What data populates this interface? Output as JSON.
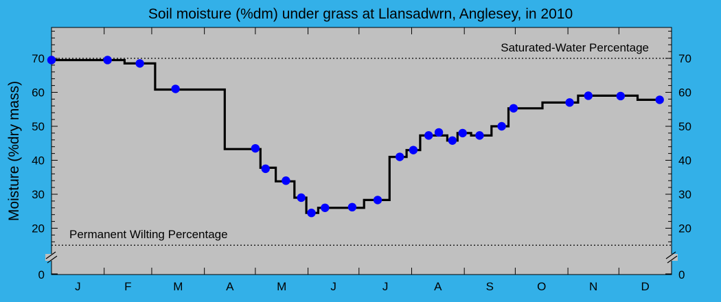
{
  "chart_data": {
    "type": "line",
    "title": "Soil moisture (%dm) under grass at Llansadwrn, Anglesey, in 2010",
    "ylabel": "Moisture (%dry mass)",
    "xlabel": "",
    "ylim": [
      0,
      80
    ],
    "xlim": [
      "2010-01-01",
      "2010-12-31"
    ],
    "yticks": [
      "0",
      "20",
      "30",
      "40",
      "50",
      "60",
      "70"
    ],
    "month_labels": [
      "J",
      "F",
      "M",
      "A",
      "M",
      "J",
      "J",
      "A",
      "S",
      "O",
      "N",
      "D"
    ],
    "grid": false,
    "axis_break": true,
    "reference_lines": [
      {
        "label": "Saturated-Water Percentage",
        "y": 70
      },
      {
        "label": "Permanent Wilting Percentage",
        "y": 15
      }
    ],
    "series": [
      {
        "color": "#0000ff",
        "points": [
          {
            "x": "2010-01-01",
            "y": 69.5
          },
          {
            "x": "2010-02-03",
            "y": 69.5
          },
          {
            "x": "2010-02-22",
            "y": 68.5
          },
          {
            "x": "2010-03-15",
            "y": 61
          },
          {
            "x": "2010-05-01",
            "y": 43.5
          },
          {
            "x": "2010-05-07",
            "y": 37.5
          },
          {
            "x": "2010-05-19",
            "y": 34
          },
          {
            "x": "2010-05-28",
            "y": 29
          },
          {
            "x": "2010-06-03",
            "y": 24.5
          },
          {
            "x": "2010-06-11",
            "y": 26
          },
          {
            "x": "2010-06-27",
            "y": 26.2
          },
          {
            "x": "2010-07-12",
            "y": 28.3
          },
          {
            "x": "2010-07-25",
            "y": 41
          },
          {
            "x": "2010-08-02",
            "y": 43
          },
          {
            "x": "2010-08-11",
            "y": 47.3
          },
          {
            "x": "2010-08-17",
            "y": 48.2
          },
          {
            "x": "2010-08-25",
            "y": 45.8
          },
          {
            "x": "2010-08-31",
            "y": 48
          },
          {
            "x": "2010-09-10",
            "y": 47.3
          },
          {
            "x": "2010-09-23",
            "y": 50
          },
          {
            "x": "2010-09-30",
            "y": 55.3
          },
          {
            "x": "2010-11-02",
            "y": 57
          },
          {
            "x": "2010-11-13",
            "y": 59
          },
          {
            "x": "2010-12-02",
            "y": 58.9
          },
          {
            "x": "2010-12-25",
            "y": 57.8
          }
        ]
      }
    ],
    "step_line": {
      "color": "#000000",
      "steps": [
        {
          "from": "2010-01-01",
          "to": "2010-02-13",
          "y": 69.5
        },
        {
          "from": "2010-02-13",
          "to": "2010-03-03",
          "y": 68.5
        },
        {
          "from": "2010-03-03",
          "to": "2010-04-13",
          "y": 60.8
        },
        {
          "from": "2010-04-13",
          "to": "2010-05-04",
          "y": 43.3
        },
        {
          "from": "2010-05-04",
          "to": "2010-05-13",
          "y": 37.8
        },
        {
          "from": "2010-05-13",
          "to": "2010-05-24",
          "y": 33.8
        },
        {
          "from": "2010-05-24",
          "to": "2010-05-31",
          "y": 29
        },
        {
          "from": "2010-05-31",
          "to": "2010-06-07",
          "y": 24.5
        },
        {
          "from": "2010-06-07",
          "to": "2010-07-04",
          "y": 26
        },
        {
          "from": "2010-07-04",
          "to": "2010-07-19",
          "y": 28.3
        },
        {
          "from": "2010-07-19",
          "to": "2010-07-29",
          "y": 41
        },
        {
          "from": "2010-07-29",
          "to": "2010-08-06",
          "y": 43
        },
        {
          "from": "2010-08-06",
          "to": "2010-08-22",
          "y": 47.3
        },
        {
          "from": "2010-08-22",
          "to": "2010-08-28",
          "y": 45.8
        },
        {
          "from": "2010-08-28",
          "to": "2010-09-05",
          "y": 48
        },
        {
          "from": "2010-09-05",
          "to": "2010-09-17",
          "y": 47.3
        },
        {
          "from": "2010-09-17",
          "to": "2010-09-27",
          "y": 50
        },
        {
          "from": "2010-09-27",
          "to": "2010-10-17",
          "y": 55.3
        },
        {
          "from": "2010-10-17",
          "to": "2010-11-07",
          "y": 57
        },
        {
          "from": "2010-11-07",
          "to": "2010-12-12",
          "y": 59
        },
        {
          "from": "2010-12-12",
          "to": "2010-12-25",
          "y": 57.8
        }
      ]
    },
    "colors": {
      "background": "#33b0e8",
      "plot_area": "#c0c0c0",
      "markers": "#0000ff",
      "line": "#000000"
    }
  }
}
